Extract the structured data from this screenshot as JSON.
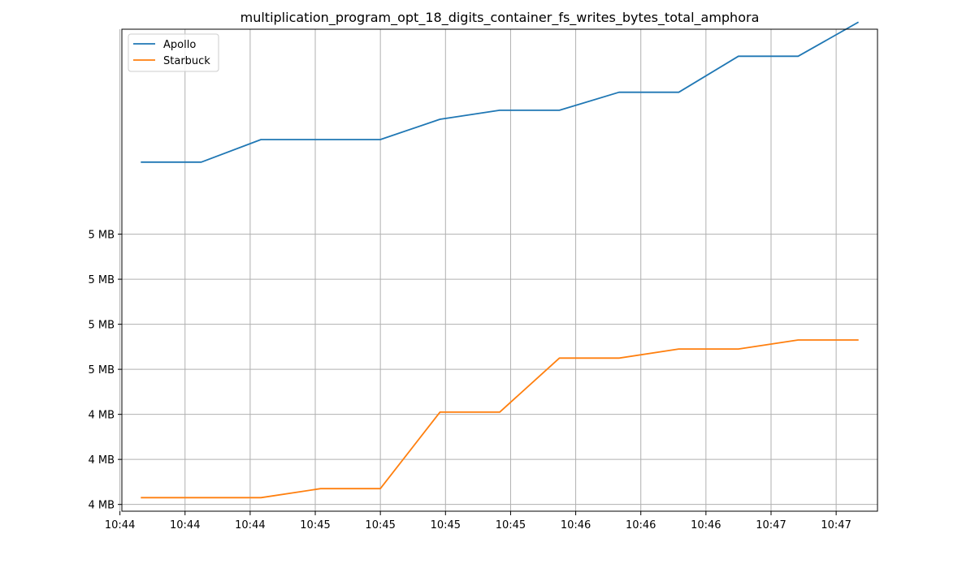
{
  "chart_data": {
    "type": "line",
    "title": "multiplication_program_opt_18_digits_container_fs_writes_bytes_total_amphora",
    "xlabel": "",
    "ylabel": "",
    "x_tick_labels": [
      "10:44",
      "10:44",
      "10:44",
      "10:45",
      "10:45",
      "10:45",
      "10:45",
      "10:46",
      "10:46",
      "10:46",
      "10:47",
      "10:47"
    ],
    "y_tick_labels": [
      "4 MB",
      "4 MB",
      "4 MB",
      "5 MB",
      "5 MB",
      "5 MB",
      "5 MB"
    ],
    "grid": true,
    "legend_position": "top-left",
    "x_index_range": [
      -0.33,
      12.33
    ],
    "ylim": [
      3.915,
      4.985
    ],
    "series": [
      {
        "name": "Apollo",
        "color": "#1f77b4",
        "x": [
          0,
          1,
          2,
          3,
          4,
          5,
          6,
          7,
          8,
          9,
          10,
          11,
          12
        ],
        "values": [
          4.69,
          4.69,
          4.74,
          4.74,
          4.74,
          4.785,
          4.805,
          4.805,
          4.845,
          4.845,
          4.925,
          4.925,
          5.0
        ]
      },
      {
        "name": "Starbuck",
        "color": "#ff7f0e",
        "x": [
          0,
          1,
          2,
          3,
          4,
          5,
          6,
          7,
          8,
          9,
          10,
          11,
          12
        ],
        "values": [
          3.945,
          3.945,
          3.945,
          3.965,
          3.965,
          4.135,
          4.135,
          4.255,
          4.255,
          4.275,
          4.275,
          4.295,
          4.295
        ]
      }
    ]
  }
}
